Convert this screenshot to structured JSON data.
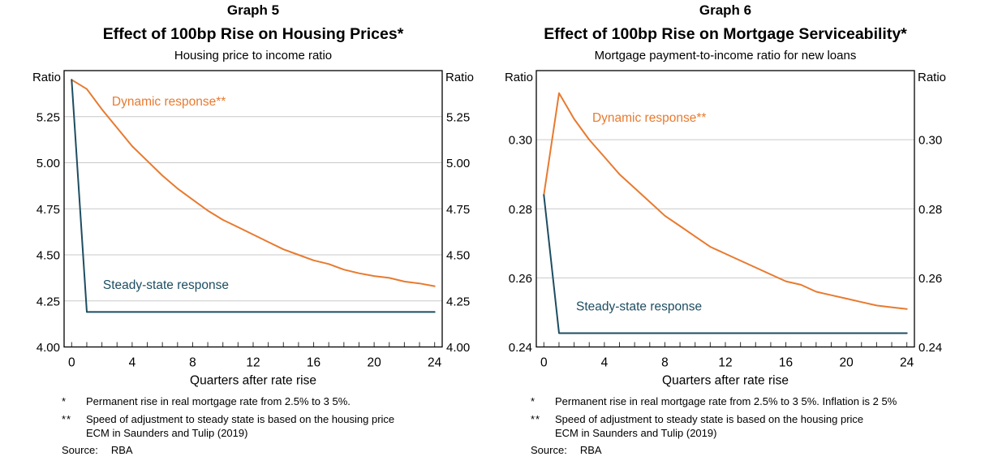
{
  "colors": {
    "dynamic_line": "#e87a2f",
    "steady_line": "#1d4d61",
    "gridline": "#c9c9c9",
    "axis": "#000000",
    "tick": "#333333"
  },
  "chart_data": [
    {
      "type": "line",
      "graph_label": "Graph 5",
      "title": "Effect of 100bp Rise on Housing Prices*",
      "subtitle": "Housing price to income ratio",
      "unit_left": "Ratio",
      "unit_right": "Ratio",
      "xlabel": "Quarters after rate rise",
      "grid": true,
      "legend_position": "inline-labels",
      "xlim": [
        -0.5,
        24.5
      ],
      "ylim": [
        4.0,
        5.5
      ],
      "xtick_values": [
        0,
        4,
        8,
        12,
        16,
        20,
        24
      ],
      "xtick_labels": [
        "0",
        "4",
        "8",
        "12",
        "16",
        "20",
        "24"
      ],
      "minor_xtick_step": 1,
      "ytick_values": [
        4.0,
        4.25,
        4.5,
        4.75,
        5.0,
        5.25
      ],
      "ytick_labels": [
        "4.00",
        "4.25",
        "4.50",
        "4.75",
        "5.00",
        "5.25"
      ],
      "x": [
        0,
        1,
        2,
        3,
        4,
        5,
        6,
        7,
        8,
        9,
        10,
        11,
        12,
        13,
        14,
        15,
        16,
        17,
        18,
        19,
        20,
        21,
        22,
        23,
        24
      ],
      "series": [
        {
          "name": "Dynamic response**",
          "color": "#e87a2f",
          "label_at": [
            2.66,
            5.31
          ],
          "values": [
            5.45,
            5.4,
            5.29,
            5.19,
            5.09,
            5.01,
            4.93,
            4.86,
            4.8,
            4.74,
            4.69,
            4.65,
            4.61,
            4.57,
            4.53,
            4.5,
            4.47,
            4.45,
            4.42,
            4.4,
            4.385,
            4.375,
            4.355,
            4.345,
            4.33
          ]
        },
        {
          "name": "Steady-state response",
          "color": "#1d4d61",
          "label_at": [
            2.07,
            4.315
          ],
          "values": [
            5.45,
            4.19,
            4.19,
            4.19,
            4.19,
            4.19,
            4.19,
            4.19,
            4.19,
            4.19,
            4.19,
            4.19,
            4.19,
            4.19,
            4.19,
            4.19,
            4.19,
            4.19,
            4.19,
            4.19,
            4.19,
            4.19,
            4.19,
            4.19,
            4.19
          ]
        }
      ],
      "footnotes": [
        {
          "marker": "*",
          "lines": [
            "Permanent rise in real mortgage rate from 2.5% to 3 5%."
          ]
        },
        {
          "marker": "**",
          "lines": [
            "Speed of adjustment to steady state is based on the housing price",
            "ECM in Saunders and Tulip (2019)"
          ]
        }
      ],
      "source_label": "Source:",
      "source_value": "RBA"
    },
    {
      "type": "line",
      "graph_label": "Graph 6",
      "title": "Effect of 100bp Rise on Mortgage Serviceability*",
      "subtitle": "Mortgage payment-to-income ratio for new loans",
      "unit_left": "Ratio",
      "unit_right": "Ratio",
      "xlabel": "Quarters after rate rise",
      "grid": true,
      "legend_position": "inline-labels",
      "xlim": [
        -0.5,
        24.5
      ],
      "ylim": [
        0.24,
        0.32
      ],
      "xtick_values": [
        0,
        4,
        8,
        12,
        16,
        20,
        24
      ],
      "xtick_labels": [
        "0",
        "4",
        "8",
        "12",
        "16",
        "20",
        "24"
      ],
      "minor_xtick_step": 1,
      "ytick_values": [
        0.24,
        0.26,
        0.28,
        0.3
      ],
      "ytick_labels": [
        "0.24",
        "0.26",
        "0.28",
        "0.30"
      ],
      "x": [
        0,
        1,
        2,
        3,
        4,
        5,
        6,
        7,
        8,
        9,
        10,
        11,
        12,
        13,
        14,
        15,
        16,
        17,
        18,
        19,
        20,
        21,
        22,
        23,
        24
      ],
      "series": [
        {
          "name": "Dynamic response**",
          "color": "#e87a2f",
          "label_at": [
            3.2,
            0.3052
          ],
          "values": [
            0.284,
            0.3135,
            0.306,
            0.3,
            0.295,
            0.29,
            0.286,
            0.282,
            0.278,
            0.275,
            0.272,
            0.269,
            0.267,
            0.265,
            0.263,
            0.261,
            0.259,
            0.258,
            0.256,
            0.255,
            0.254,
            0.253,
            0.252,
            0.2515,
            0.251
          ]
        },
        {
          "name": "Steady-state response",
          "color": "#1d4d61",
          "label_at": [
            2.13,
            0.2506
          ],
          "values": [
            0.284,
            0.244,
            0.244,
            0.244,
            0.244,
            0.244,
            0.244,
            0.244,
            0.244,
            0.244,
            0.244,
            0.244,
            0.244,
            0.244,
            0.244,
            0.244,
            0.244,
            0.244,
            0.244,
            0.244,
            0.244,
            0.244,
            0.244,
            0.244,
            0.244
          ]
        }
      ],
      "footnotes": [
        {
          "marker": "*",
          "lines": [
            "Permanent rise in real mortgage rate from 2.5% to 3 5%. Inflation is 2 5%"
          ]
        },
        {
          "marker": "**",
          "lines": [
            "Speed of adjustment to steady state is based on the housing price",
            "ECM in Saunders and Tulip (2019)"
          ]
        }
      ],
      "source_label": "Source:",
      "source_value": "RBA"
    }
  ]
}
